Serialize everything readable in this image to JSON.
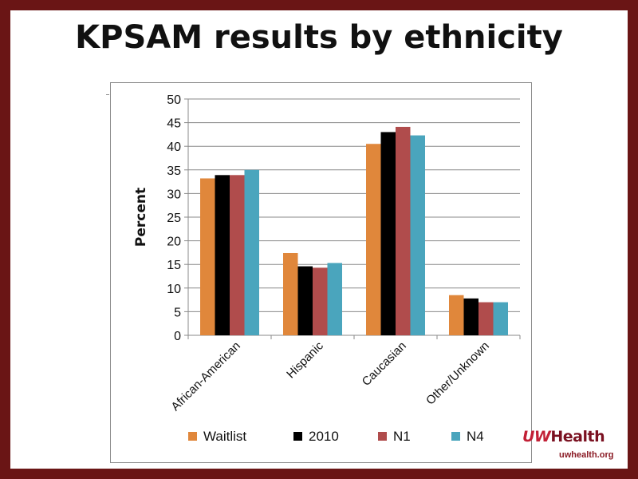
{
  "slide": {
    "title": "KPSAM results by ethnicity",
    "logo_text": "UWHealth",
    "logo_url": "uwhealth.org"
  },
  "colors": {
    "frame": "#6a1515",
    "waitlist": "#e0873b",
    "y2010": "#000000",
    "n1": "#b04c4c",
    "n4": "#4aa5bd"
  },
  "chart_data": {
    "type": "bar",
    "categories": [
      "African-American",
      "Hispanic",
      "Caucasian",
      "Other/Unknown"
    ],
    "series": [
      {
        "name": "Waitlist",
        "values": [
          33.2,
          17.4,
          40.5,
          8.5
        ],
        "color": "#e0873b"
      },
      {
        "name": "2010",
        "values": [
          33.9,
          14.6,
          43.0,
          7.8
        ],
        "color": "#000000"
      },
      {
        "name": "N1",
        "values": [
          33.9,
          14.3,
          44.1,
          7.0
        ],
        "color": "#b04c4c"
      },
      {
        "name": "N4",
        "values": [
          35.0,
          15.3,
          42.3,
          7.0
        ],
        "color": "#4aa5bd"
      }
    ],
    "title": "",
    "xlabel": "",
    "ylabel": "Percent",
    "ylim": [
      0,
      50
    ],
    "yticks": [
      0,
      5,
      10,
      15,
      20,
      25,
      30,
      35,
      40,
      45,
      50
    ],
    "grid": true,
    "legend": "bottom"
  }
}
